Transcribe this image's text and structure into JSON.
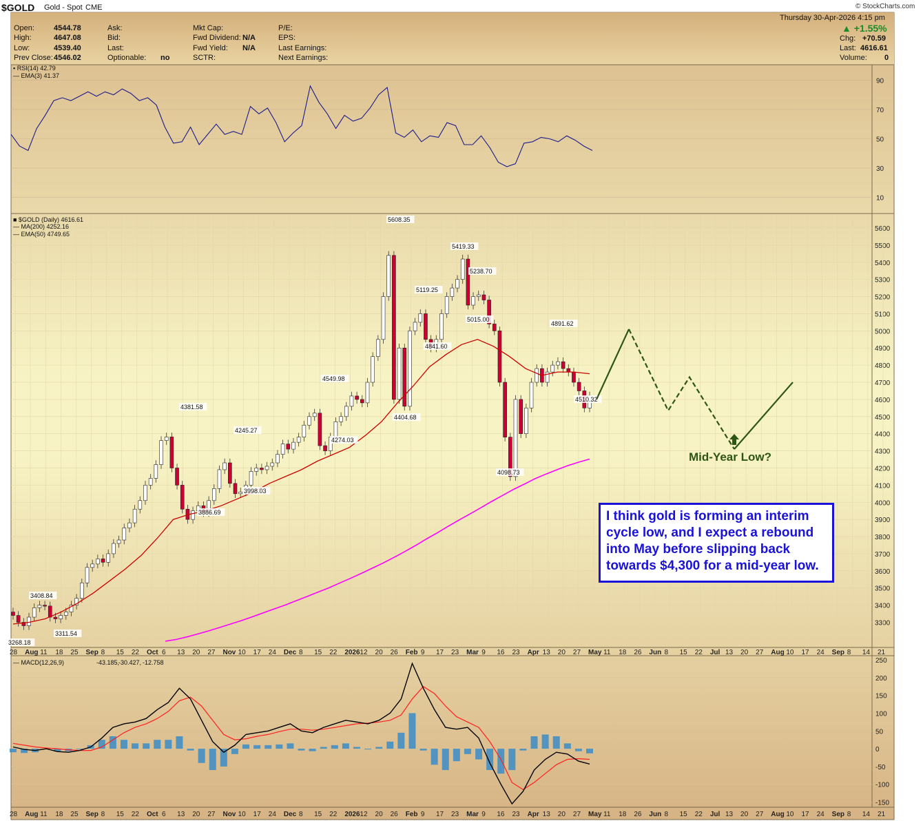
{
  "header": {
    "symbol": "$GOLD",
    "name": "Gold - Spot",
    "exchange": "CME",
    "copyright": "© StockCharts.com",
    "datetime": "Thursday  30-Apr-2026  4:15 pm",
    "open_label": "Open:",
    "open": "4544.78",
    "high_label": "High:",
    "high": "4647.08",
    "low_label": "Low:",
    "low": "4539.40",
    "prev_label": "Prev Close:",
    "prev": "4546.02",
    "ask_label": "Ask:",
    "bid_label": "Bid:",
    "last_label": "Last:",
    "optionable_label": "Optionable:",
    "optionable": "no",
    "mktcap_label": "Mkt Cap:",
    "fwddiv_label": "Fwd Dividend:",
    "fwddiv": "N/A",
    "fwdyield_label": "Fwd Yield:",
    "fwdyield": "N/A",
    "sctr_label": "SCTR:",
    "pe_label": "P/E:",
    "eps_label": "EPS:",
    "lastearn_label": "Last Earnings:",
    "nextearn_label": "Next Earnings:",
    "pct_change": "▲ +1.55%",
    "chg_label": "Chg:",
    "chg": "+70.59",
    "last2_label": "Last:",
    "last": "4616.61",
    "volume_label": "Volume:",
    "volume": "0"
  },
  "colors": {
    "background_top": "#d9b98a",
    "background_mid": "#f7f2c2",
    "rsi_line": "#1a1a8c",
    "ma200": "#ff00ff",
    "ema50": "#cc0000",
    "candle_down": "#cc0033",
    "candle_up": "#ffffff",
    "macd_line": "#000000",
    "signal_line": "#ff2020",
    "histogram": "#3a8cc8",
    "projection": "#2d5514",
    "note": "#1a12d8"
  },
  "annotation": {
    "note_lines": [
      "I think gold is forming an interim",
      "cycle low, and I expect a rebound",
      "into May before slipping back",
      "towards $4,300 for a mid-year low."
    ],
    "mid_year_label": "Mid-Year Low?"
  },
  "chart_data": [
    {
      "type": "line",
      "panel": "RSI",
      "legend": [
        "RSI(14) 42.79",
        "EMA(3) 41.37"
      ],
      "ylim": [
        0,
        100
      ],
      "yticks": [
        90,
        70,
        50,
        30,
        10
      ],
      "series": [
        {
          "name": "RSI(14)",
          "values": [
            53,
            45,
            42,
            57,
            66,
            76,
            78,
            76,
            79,
            82,
            79,
            82,
            80,
            84,
            81,
            76,
            78,
            73,
            58,
            47,
            48,
            58,
            46,
            53,
            60,
            53,
            55,
            53,
            72,
            67,
            71,
            61,
            48,
            54,
            59,
            86,
            75,
            67,
            57,
            66,
            62,
            64,
            71,
            80,
            85,
            54,
            51,
            56,
            48,
            52,
            51,
            61,
            59,
            46,
            46,
            52,
            44,
            34,
            31,
            33,
            47,
            48,
            51,
            50,
            48,
            52,
            49,
            45,
            42
          ],
          "last": 42.79
        }
      ],
      "rsi_last": 42.79,
      "ema3_last": 41.37
    },
    {
      "type": "candlestick",
      "panel": "Price",
      "legend": [
        "$GOLD (Daily) 4616.61",
        "MA(200) 4252.16",
        "EMA(50) 4749.65"
      ],
      "ylim": [
        3200,
        5700
      ],
      "yticks": [
        3300,
        3400,
        3500,
        3600,
        3700,
        3800,
        3900,
        4000,
        4100,
        4200,
        4300,
        4400,
        4500,
        4600,
        4700,
        4800,
        4900,
        5000,
        5100,
        5200,
        5300,
        5400,
        5500,
        5600
      ],
      "x_tick_labels": [
        "28",
        "Aug",
        "11",
        "18",
        "25",
        "Sep",
        "8",
        "15",
        "22",
        "Oct",
        "6",
        "13",
        "20",
        "27",
        "Nov",
        "10",
        "17",
        "24",
        "Dec",
        "8",
        "15",
        "22",
        "2026",
        "12",
        "20",
        "26",
        "Feb",
        "9",
        "17",
        "23",
        "Mar",
        "9",
        "16",
        "23",
        "Apr",
        "13",
        "20",
        "27",
        "May",
        "11",
        "18",
        "26",
        "Jun",
        "8",
        "15",
        "22",
        "Jul",
        "13",
        "20",
        "27",
        "Aug",
        "10",
        "17",
        "24",
        "Sep",
        "8",
        "14",
        "21"
      ],
      "close_series": [
        3340,
        3300,
        3280,
        3330,
        3385,
        3400,
        3395,
        3330,
        3320,
        3340,
        3360,
        3400,
        3440,
        3530,
        3620,
        3640,
        3670,
        3650,
        3700,
        3760,
        3780,
        3850,
        3880,
        3960,
        4010,
        4100,
        4140,
        4220,
        4360,
        4381,
        4200,
        4100,
        3960,
        3900,
        3950,
        3980,
        3940,
        4010,
        4080,
        4190,
        4230,
        4110,
        4050,
        4060,
        4100,
        4180,
        4200,
        4190,
        4210,
        4230,
        4280,
        4340,
        4310,
        4350,
        4380,
        4450,
        4500,
        4520,
        4330,
        4300,
        4380,
        4470,
        4500,
        4560,
        4620,
        4600,
        4580,
        4700,
        4850,
        4950,
        5200,
        5440,
        4600,
        4900,
        4560,
        5000,
        5050,
        5100,
        4950,
        4900,
        4950,
        5100,
        5200,
        5250,
        5300,
        5419,
        5150,
        5200,
        5210,
        5180,
        5040,
        5000,
        4700,
        4380,
        4150,
        4600,
        4400,
        4550,
        4700,
        4780,
        4700,
        4760,
        4800,
        4820,
        4780,
        4760,
        4700,
        4650,
        4550,
        4620
      ],
      "ma200_series": [
        3190,
        3200,
        3215,
        3232,
        3250,
        3270,
        3290,
        3310,
        3332,
        3355,
        3378,
        3400,
        3425,
        3450,
        3475,
        3500,
        3528,
        3556,
        3585,
        3615,
        3645,
        3678,
        3712,
        3748,
        3786,
        3822,
        3860,
        3897,
        3932,
        3968,
        4005,
        4040,
        4075,
        4106,
        4138,
        4165,
        4190,
        4214,
        4234,
        4252
      ],
      "ema50_series": [
        3290,
        3300,
        3320,
        3360,
        3410,
        3470,
        3540,
        3610,
        3690,
        3790,
        3900,
        3930,
        3950,
        3980,
        4020,
        4060,
        4110,
        4150,
        4190,
        4240,
        4280,
        4320,
        4390,
        4470,
        4580,
        4680,
        4790,
        4860,
        4920,
        4950,
        4910,
        4850,
        4780,
        4740,
        4760,
        4760,
        4750
      ],
      "annotations": [
        {
          "text": "3268.18"
        },
        {
          "text": "3408.84"
        },
        {
          "text": "3311.54"
        },
        {
          "text": "4381.58"
        },
        {
          "text": "3886.69"
        },
        {
          "text": "4245.27"
        },
        {
          "text": "3998.03"
        },
        {
          "text": "4549.98"
        },
        {
          "text": "4274.03"
        },
        {
          "text": "5608.35"
        },
        {
          "text": "5119.25"
        },
        {
          "text": "4841.60"
        },
        {
          "text": "4404.68"
        },
        {
          "text": "5419.33"
        },
        {
          "text": "5238.70"
        },
        {
          "text": "5015.00"
        },
        {
          "text": "4098.73"
        },
        {
          "text": "4891.62"
        },
        {
          "text": "4510.32"
        }
      ],
      "projection": [
        4600,
        5010,
        4535,
        4730,
        4310,
        4700
      ]
    },
    {
      "type": "line",
      "panel": "MACD",
      "legend": "MACD(12,26,9)",
      "legend_values": [
        "-43.185",
        "-30.427",
        "-12.758"
      ],
      "ylim": [
        -160,
        260
      ],
      "yticks": [
        250,
        200,
        150,
        100,
        50,
        0,
        -50,
        -100,
        -150
      ],
      "series": [
        {
          "name": "MACD",
          "values": [
            5,
            -2,
            -5,
            0,
            -8,
            -10,
            -5,
            5,
            30,
            60,
            70,
            75,
            85,
            110,
            130,
            170,
            140,
            80,
            20,
            -10,
            10,
            40,
            45,
            50,
            60,
            70,
            50,
            45,
            60,
            70,
            80,
            75,
            70,
            80,
            100,
            140,
            240,
            170,
            110,
            60,
            55,
            60,
            30,
            -40,
            -100,
            -155,
            -120,
            -60,
            -30,
            -10,
            -15,
            -35,
            -43
          ]
        },
        {
          "name": "Signal",
          "values": [
            15,
            10,
            5,
            2,
            0,
            -3,
            -5,
            -5,
            5,
            25,
            45,
            60,
            70,
            85,
            105,
            135,
            145,
            120,
            80,
            40,
            25,
            28,
            35,
            40,
            48,
            55,
            55,
            52,
            55,
            60,
            65,
            70,
            72,
            75,
            80,
            95,
            140,
            175,
            155,
            120,
            90,
            75,
            60,
            20,
            -30,
            -95,
            -115,
            -95,
            -70,
            -45,
            -30,
            -28,
            -30
          ]
        },
        {
          "name": "Histogram",
          "values": [
            -10,
            -12,
            -10,
            -2,
            -8,
            -7,
            0,
            10,
            25,
            35,
            25,
            15,
            15,
            25,
            25,
            35,
            -5,
            -40,
            -60,
            -50,
            -15,
            12,
            10,
            10,
            12,
            15,
            -5,
            -7,
            5,
            10,
            15,
            5,
            -2,
            5,
            20,
            45,
            100,
            -5,
            -45,
            -60,
            -35,
            -15,
            -30,
            -60,
            -70,
            -60,
            -5,
            35,
            40,
            35,
            15,
            -7,
            -13
          ]
        }
      ],
      "macd_last": -43.185,
      "signal_last": -30.427,
      "histogram_last": -12.758
    }
  ]
}
